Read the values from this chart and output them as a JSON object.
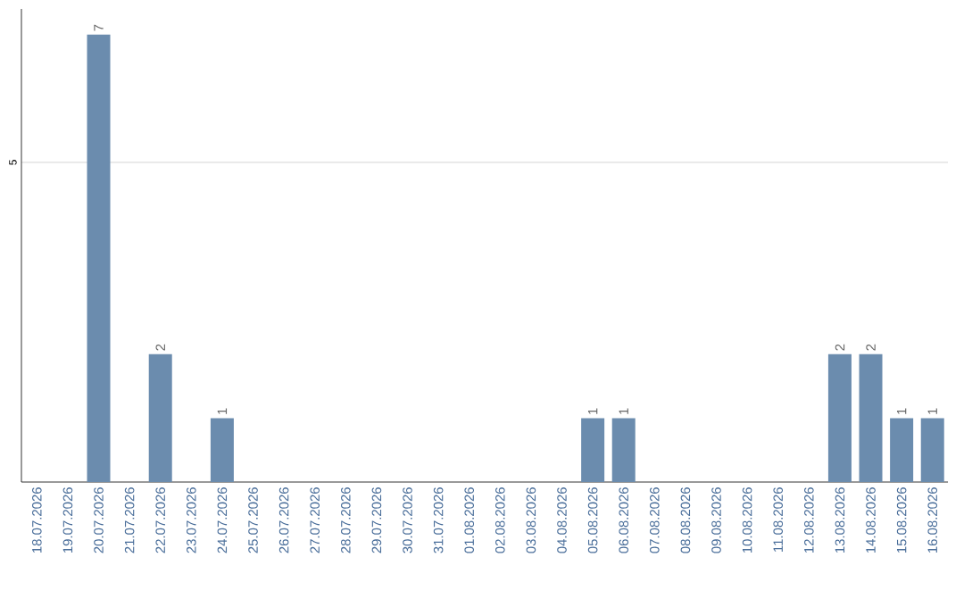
{
  "chart_data": {
    "type": "bar",
    "categories": [
      "18.07.2026",
      "19.07.2026",
      "20.07.2026",
      "21.07.2026",
      "22.07.2026",
      "23.07.2026",
      "24.07.2026",
      "25.07.2026",
      "26.07.2026",
      "27.07.2026",
      "28.07.2026",
      "29.07.2026",
      "30.07.2026",
      "31.07.2026",
      "01.08.2026",
      "02.08.2026",
      "03.08.2026",
      "04.08.2026",
      "05.08.2026",
      "06.08.2026",
      "07.08.2026",
      "08.08.2026",
      "09.08.2026",
      "10.08.2026",
      "11.08.2026",
      "12.08.2026",
      "13.08.2026",
      "14.08.2026",
      "15.08.2026",
      "16.08.2026"
    ],
    "values": [
      0,
      0,
      7,
      0,
      2,
      0,
      1,
      0,
      0,
      0,
      0,
      0,
      0,
      0,
      0,
      0,
      0,
      0,
      1,
      1,
      0,
      0,
      0,
      0,
      0,
      0,
      2,
      2,
      1,
      1
    ],
    "value_labels": [
      null,
      null,
      "7",
      null,
      "2",
      null,
      "1",
      null,
      null,
      null,
      null,
      null,
      null,
      null,
      null,
      null,
      null,
      null,
      "1",
      "1",
      null,
      null,
      null,
      null,
      null,
      null,
      "2",
      "2",
      "1",
      "1"
    ],
    "color": "#6b8cae",
    "ylim": [
      0,
      7.4
    ],
    "yticks": [
      5
    ],
    "grid": "y"
  }
}
